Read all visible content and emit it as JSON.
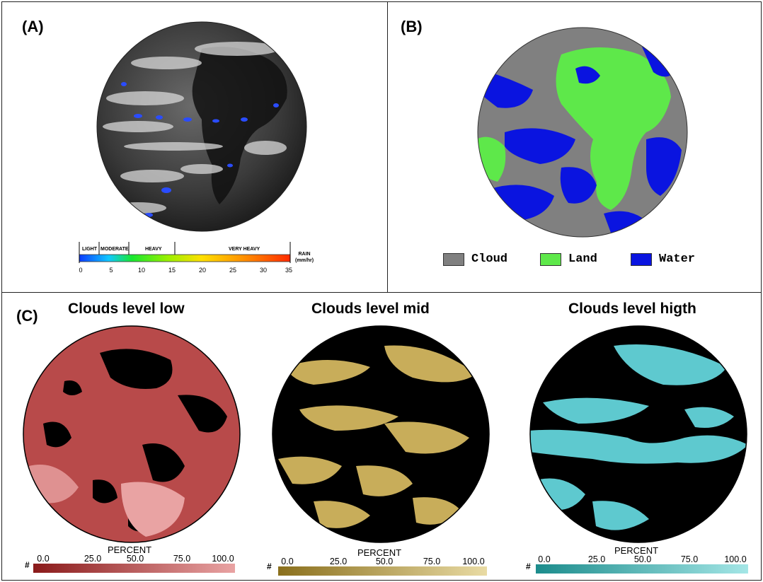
{
  "panel_a": {
    "tag": "(A)",
    "rain_scale": {
      "categories": [
        "LIGHT",
        "MODERATE",
        "HEAVY",
        "VERY HEAVY"
      ],
      "ticks": [
        "0",
        "5",
        "10",
        "15",
        "20",
        "25",
        "30",
        "35"
      ],
      "unit_line1": "RAIN",
      "unit_line2": "(mm/hr)",
      "colors": [
        "#0b3cff",
        "#10c8ff",
        "#18e830",
        "#9af000",
        "#ffe000",
        "#ff9000",
        "#ff2a00"
      ]
    }
  },
  "panel_b": {
    "tag": "(B)",
    "legend": [
      {
        "label": "Cloud",
        "color": "#808080"
      },
      {
        "label": "Land",
        "color": "#5ee84a"
      },
      {
        "label": "Water",
        "color": "#0a14e0"
      }
    ]
  },
  "panel_c": {
    "tag": "(C)",
    "maps": [
      {
        "title": "Clouds level low",
        "bar_title": "PERCENT",
        "hash": "#",
        "ticks": [
          "0.0",
          "25.0",
          "50.0",
          "75.0",
          "100.0"
        ],
        "color_start": "#8a1a1a",
        "color_end": "#e9a3a3",
        "cloud_color": "#b84a4a"
      },
      {
        "title": "Clouds level mid",
        "bar_title": "PERCENT",
        "hash": "#",
        "ticks": [
          "0.0",
          "25.0",
          "50.0",
          "75.0",
          "100.0"
        ],
        "color_start": "#8a6f1c",
        "color_end": "#e9dba4",
        "cloud_color": "#c8ad5a"
      },
      {
        "title": "Clouds level higth",
        "bar_title": "PERCENT",
        "hash": "#",
        "ticks": [
          "0.0",
          "25.0",
          "50.0",
          "75.0",
          "100.0"
        ],
        "color_start": "#1c8c8c",
        "color_end": "#a4e6e6",
        "cloud_color": "#5ec9cf"
      }
    ]
  }
}
